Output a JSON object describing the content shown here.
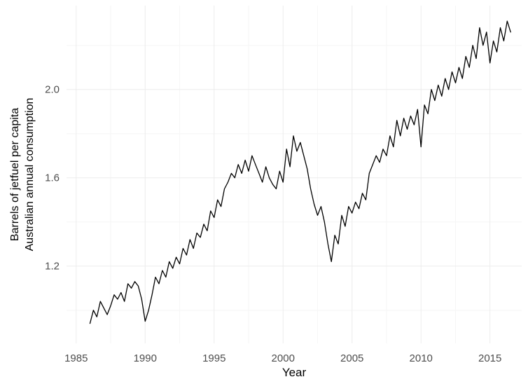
{
  "chart_data": {
    "type": "line",
    "title": "",
    "xlabel": "Year",
    "ylabel": "Barrels of jetfuel per capita / Australian annual consumption",
    "ylabel_lines": [
      "Barrels of jetfuel per capita",
      "Australian annual consumption"
    ],
    "frequency": "quarterly",
    "x_ticks": [
      1985,
      1990,
      1995,
      2000,
      2005,
      2010,
      2015
    ],
    "y_ticks": [
      1.2,
      1.6,
      2.0
    ],
    "x_minor_ticks": [
      1987.5,
      1992.5,
      1997.5,
      2002.5,
      2007.5,
      2012.5
    ],
    "y_minor_ticks": [
      1.0,
      1.4,
      1.8,
      2.2
    ],
    "xlim": [
      1984.3,
      2017.3
    ],
    "ylim": [
      0.85,
      2.38
    ],
    "grid": "on",
    "legend": "none",
    "line_color": "#000000",
    "grid_major_color": "#ececec",
    "grid_minor_color": "#f6f6f6",
    "tick_label_color": "#4d4d4d",
    "series": [
      {
        "name": "Barrels of jetfuel per capita, Australian annual consumption",
        "x": [
          1986.0,
          1986.25,
          1986.5,
          1986.75,
          1987.0,
          1987.25,
          1987.5,
          1987.75,
          1988.0,
          1988.25,
          1988.5,
          1988.75,
          1989.0,
          1989.25,
          1989.5,
          1989.75,
          1990.0,
          1990.25,
          1990.5,
          1990.75,
          1991.0,
          1991.25,
          1991.5,
          1991.75,
          1992.0,
          1992.25,
          1992.5,
          1992.75,
          1993.0,
          1993.25,
          1993.5,
          1993.75,
          1994.0,
          1994.25,
          1994.5,
          1994.75,
          1995.0,
          1995.25,
          1995.5,
          1995.75,
          1996.0,
          1996.25,
          1996.5,
          1996.75,
          1997.0,
          1997.25,
          1997.5,
          1997.75,
          1998.0,
          1998.25,
          1998.5,
          1998.75,
          1999.0,
          1999.25,
          1999.5,
          1999.75,
          2000.0,
          2000.25,
          2000.5,
          2000.75,
          2001.0,
          2001.25,
          2001.5,
          2001.75,
          2002.0,
          2002.25,
          2002.5,
          2002.75,
          2003.0,
          2003.25,
          2003.5,
          2003.75,
          2004.0,
          2004.25,
          2004.5,
          2004.75,
          2005.0,
          2005.25,
          2005.5,
          2005.75,
          2006.0,
          2006.25,
          2006.5,
          2006.75,
          2007.0,
          2007.25,
          2007.5,
          2007.75,
          2008.0,
          2008.25,
          2008.5,
          2008.75,
          2009.0,
          2009.25,
          2009.5,
          2009.75,
          2010.0,
          2010.25,
          2010.5,
          2010.75,
          2011.0,
          2011.25,
          2011.5,
          2011.75,
          2012.0,
          2012.25,
          2012.5,
          2012.75,
          2013.0,
          2013.25,
          2013.5,
          2013.75,
          2014.0,
          2014.25,
          2014.5,
          2014.75,
          2015.0,
          2015.25,
          2015.5,
          2015.75,
          2016.0,
          2016.25,
          2016.5
        ],
        "y": [
          0.94,
          1.0,
          0.97,
          1.04,
          1.01,
          0.98,
          1.02,
          1.07,
          1.05,
          1.08,
          1.04,
          1.12,
          1.1,
          1.13,
          1.11,
          1.05,
          0.95,
          1.0,
          1.07,
          1.15,
          1.12,
          1.18,
          1.15,
          1.22,
          1.19,
          1.24,
          1.21,
          1.28,
          1.25,
          1.32,
          1.28,
          1.35,
          1.33,
          1.39,
          1.36,
          1.45,
          1.42,
          1.5,
          1.47,
          1.55,
          1.58,
          1.62,
          1.6,
          1.66,
          1.62,
          1.68,
          1.63,
          1.7,
          1.66,
          1.62,
          1.58,
          1.65,
          1.6,
          1.57,
          1.55,
          1.63,
          1.58,
          1.73,
          1.65,
          1.79,
          1.72,
          1.76,
          1.7,
          1.64,
          1.55,
          1.48,
          1.43,
          1.47,
          1.4,
          1.3,
          1.22,
          1.34,
          1.3,
          1.43,
          1.38,
          1.47,
          1.44,
          1.49,
          1.46,
          1.53,
          1.5,
          1.62,
          1.66,
          1.7,
          1.67,
          1.73,
          1.7,
          1.79,
          1.74,
          1.86,
          1.79,
          1.87,
          1.82,
          1.88,
          1.84,
          1.91,
          1.74,
          1.93,
          1.89,
          2.0,
          1.95,
          2.02,
          1.97,
          2.05,
          2.0,
          2.08,
          2.03,
          2.1,
          2.05,
          2.15,
          2.1,
          2.2,
          2.14,
          2.28,
          2.2,
          2.26,
          2.12,
          2.22,
          2.17,
          2.28,
          2.22,
          2.31,
          2.26
        ]
      }
    ]
  }
}
